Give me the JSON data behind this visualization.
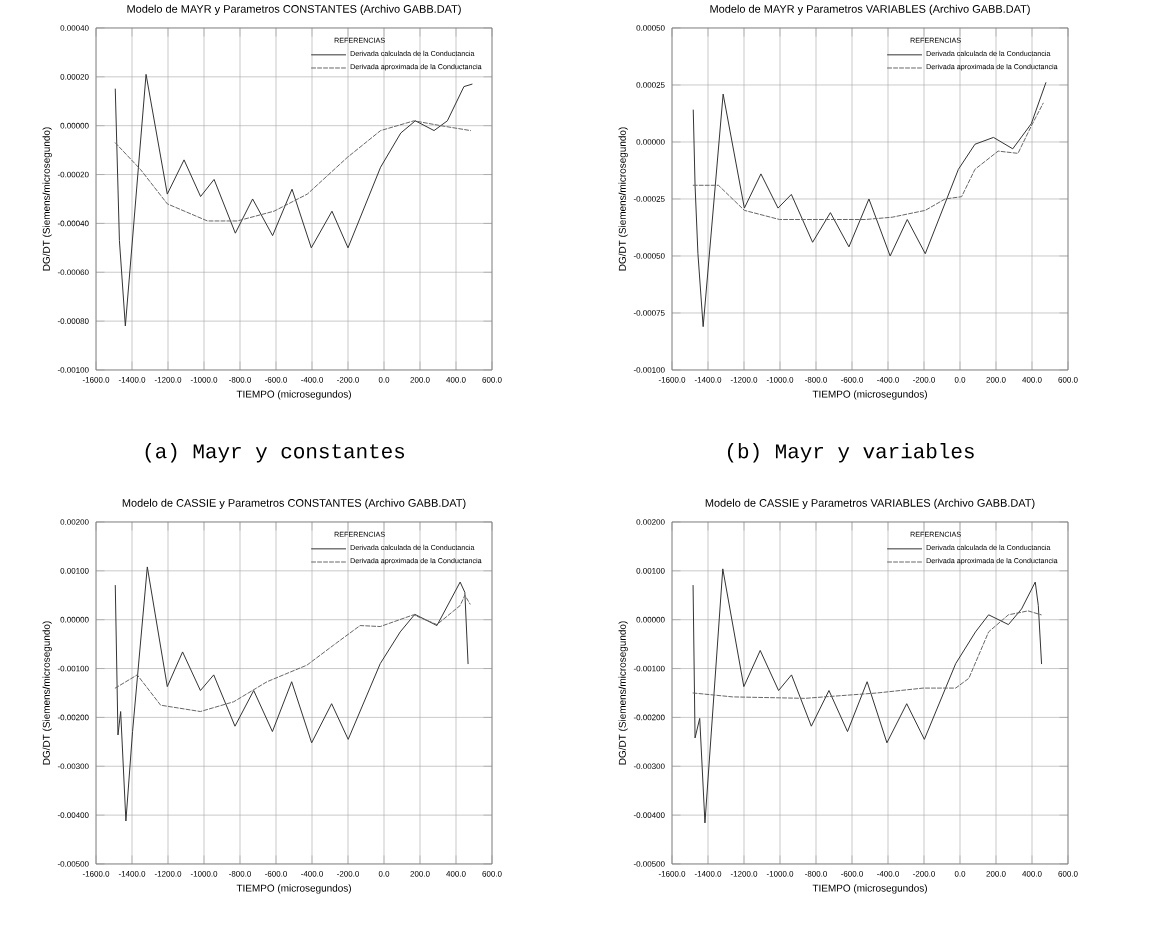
{
  "chart_data": [
    {
      "type": "line",
      "title": "Modelo de MAYR y Parametros CONSTANTES (Archivo GABB.DAT)",
      "xlabel": "TIEMPO (microsegundos)",
      "ylabel": "DG/DT (Siemens/microsegundo)",
      "legend_title": "REFERENCIAS",
      "annotations": [
        "(a) Mayr y constantes"
      ],
      "grid": true,
      "legend": "top right",
      "xlim": [
        -1600,
        600
      ],
      "ylim": [
        -0.001,
        0.0004
      ],
      "xticks": [
        {
          "value": -1600,
          "label": "-1600.0"
        },
        {
          "value": -1400,
          "label": "-1400.0"
        },
        {
          "value": -1200,
          "label": "-1200.0"
        },
        {
          "value": -1000,
          "label": "-1000.0"
        },
        {
          "value": -800,
          "label": "-800.0"
        },
        {
          "value": -600,
          "label": "-600.0"
        },
        {
          "value": -400,
          "label": "-400.0"
        },
        {
          "value": -200,
          "label": "-200.0"
        },
        {
          "value": 0,
          "label": "0.0"
        },
        {
          "value": 200,
          "label": "200.0"
        },
        {
          "value": 400,
          "label": "400.0"
        },
        {
          "value": 600,
          "label": "600.0"
        }
      ],
      "yticks": [
        {
          "value": -0.001,
          "label": "-0.00100"
        },
        {
          "value": -0.0008,
          "label": "-0.00080"
        },
        {
          "value": -0.0006,
          "label": "-0.00060"
        },
        {
          "value": -0.0004,
          "label": "-0.00040"
        },
        {
          "value": -0.0002,
          "label": "-0.00020"
        },
        {
          "value": 0,
          "label": "0.00000"
        },
        {
          "value": 0.0002,
          "label": "0.00020"
        },
        {
          "value": 0.0004,
          "label": "0.00040"
        }
      ],
      "series": [
        {
          "name": "Derivada calculada de la Conductancia",
          "color": "#333333",
          "line_style": "solid",
          "x": [
            -1493,
            -1470,
            -1437,
            -1322,
            -1204,
            -1111,
            -1019,
            -944,
            -826,
            -730,
            -619,
            -511,
            -404,
            -289,
            -200,
            -19,
            93,
            174,
            278,
            352,
            444,
            489
          ],
          "values": [
            0.00015,
            -0.00047,
            -0.00082,
            0.00021,
            -0.00028,
            -0.00014,
            -0.00029,
            -0.00022,
            -0.00044,
            -0.0003,
            -0.00045,
            -0.00026,
            -0.0005,
            -0.00035,
            -0.0005,
            -0.00017,
            -3e-05,
            2e-05,
            -2e-05,
            2e-05,
            0.00016,
            0.00017
          ]
        },
        {
          "name": "Derivada aproximada de la Conductancia",
          "color": "#666666",
          "line_style": "dashed",
          "x": [
            -1493,
            -1352,
            -1204,
            -981,
            -815,
            -611,
            -426,
            -204,
            -19,
            167,
            315,
            481
          ],
          "values": [
            -7e-05,
            -0.00018,
            -0.00032,
            -0.00039,
            -0.00039,
            -0.00035,
            -0.00028,
            -0.00013,
            -2e-05,
            2e-05,
            0,
            -2e-05
          ]
        }
      ]
    },
    {
      "type": "line",
      "title": "Modelo de MAYR y Parametros VARIABLES (Archivo GABB.DAT)",
      "xlabel": "TIEMPO (microsegundos)",
      "ylabel": "DG/DT (Siemens/microsegundo)",
      "legend_title": "REFERENCIAS",
      "annotations": [
        "(b) Mayr y variables"
      ],
      "grid": true,
      "legend": "top right",
      "xlim": [
        -1600,
        600
      ],
      "ylim": [
        -0.001,
        0.0005
      ],
      "xticks": [
        {
          "value": -1600,
          "label": "-1600.0"
        },
        {
          "value": -1400,
          "label": "-1400.0"
        },
        {
          "value": -1200,
          "label": "-1200.0"
        },
        {
          "value": -1000,
          "label": "-1000.0"
        },
        {
          "value": -800,
          "label": "-800.0"
        },
        {
          "value": -600,
          "label": "-600.0"
        },
        {
          "value": -400,
          "label": "-400.0"
        },
        {
          "value": -200,
          "label": "-200.0"
        },
        {
          "value": 0,
          "label": "0.0"
        },
        {
          "value": 200,
          "label": "200.0"
        },
        {
          "value": 400,
          "label": "400.0"
        },
        {
          "value": 600,
          "label": "600.0"
        }
      ],
      "yticks": [
        {
          "value": -0.001,
          "label": "-0.00100"
        },
        {
          "value": -0.00075,
          "label": "-0.00075"
        },
        {
          "value": -0.0005,
          "label": "-0.00050"
        },
        {
          "value": -0.00025,
          "label": "-0.00025"
        },
        {
          "value": 0,
          "label": "0.00000"
        },
        {
          "value": 0.00025,
          "label": "0.00025"
        },
        {
          "value": 0.0005,
          "label": "0.00050"
        }
      ],
      "series": [
        {
          "name": "Derivada calculada de la Conductancia",
          "color": "#333333",
          "line_style": "solid",
          "x": [
            -1482,
            -1472,
            -1456,
            -1427,
            -1316,
            -1198,
            -1106,
            -1011,
            -937,
            -819,
            -720,
            -617,
            -506,
            -388,
            -293,
            -193,
            -9,
            83,
            186,
            293,
            396,
            477
          ],
          "values": [
            0.00014,
            -0.00019,
            -0.00049,
            -0.00081,
            0.00021,
            -0.00029,
            -0.00014,
            -0.00029,
            -0.00023,
            -0.00044,
            -0.00031,
            -0.00046,
            -0.00025,
            -0.0005,
            -0.00034,
            -0.00049,
            -0.00012,
            -1e-05,
            2e-05,
            -3e-05,
            8e-05,
            0.00026
          ]
        },
        {
          "name": "Derivada aproximada de la Conductancia",
          "color": "#666666",
          "line_style": "dashed",
          "x": [
            -1482,
            -1342,
            -1198,
            -1003,
            -819,
            -525,
            -377,
            -193,
            -83,
            9,
            83,
            212,
            322,
            396,
            462
          ],
          "values": [
            -0.00019,
            -0.00019,
            -0.0003,
            -0.00034,
            -0.00034,
            -0.00034,
            -0.00033,
            -0.0003,
            -0.00025,
            -0.00024,
            -0.00012,
            -4e-05,
            -5e-05,
            7e-05,
            0.00017
          ]
        }
      ]
    },
    {
      "type": "line",
      "title": "Modelo de CASSIE y Parametros CONSTANTES (Archivo GABB.DAT)",
      "xlabel": "TIEMPO (microsegundos)",
      "ylabel": "DG/DT (Siemens/microsegundo)",
      "legend_title": "REFERENCIAS",
      "grid": true,
      "legend": "top right",
      "xlim": [
        -1600,
        600
      ],
      "ylim": [
        -0.005,
        0.002
      ],
      "xticks": [
        {
          "value": -1600,
          "label": "-1600.0"
        },
        {
          "value": -1400,
          "label": "-1400.0"
        },
        {
          "value": -1200,
          "label": "-1200.0"
        },
        {
          "value": -1000,
          "label": "-1000.0"
        },
        {
          "value": -800,
          "label": "-800.0"
        },
        {
          "value": -600,
          "label": "-600.0"
        },
        {
          "value": -400,
          "label": "-400.0"
        },
        {
          "value": -200,
          "label": "-200.0"
        },
        {
          "value": 0,
          "label": "0.0"
        },
        {
          "value": 200,
          "label": "200.0"
        },
        {
          "value": 400,
          "label": "400.0"
        },
        {
          "value": 600,
          "label": "600.0"
        }
      ],
      "yticks": [
        {
          "value": -0.005,
          "label": "-0.00500"
        },
        {
          "value": -0.004,
          "label": "-0.00400"
        },
        {
          "value": -0.003,
          "label": "-0.00300"
        },
        {
          "value": -0.002,
          "label": "-0.00200"
        },
        {
          "value": -0.001,
          "label": "-0.00100"
        },
        {
          "value": 0,
          "label": "0.00000"
        },
        {
          "value": 0.001,
          "label": "0.00100"
        },
        {
          "value": 0.002,
          "label": "0.00200"
        }
      ],
      "series": [
        {
          "name": "Derivada calculada de la Conductancia",
          "color": "#333333",
          "line_style": "solid",
          "x": [
            -1493,
            -1478,
            -1463,
            -1434,
            -1397,
            -1315,
            -1204,
            -1119,
            -1020,
            -946,
            -828,
            -724,
            -620,
            -513,
            -402,
            -291,
            -199,
            -21,
            90,
            171,
            294,
            423,
            449,
            467
          ],
          "values": [
            0.0007,
            -0.00236,
            -0.00188,
            -0.00412,
            -0.00229,
            0.00108,
            -0.00137,
            -0.00066,
            -0.00145,
            -0.00113,
            -0.00218,
            -0.00145,
            -0.00229,
            -0.00127,
            -0.00252,
            -0.00172,
            -0.00245,
            -0.0009,
            -0.00025,
            0.00011,
            -0.00012,
            0.00077,
            0.00056,
            -0.0009
          ]
        },
        {
          "name": "Derivada aproximada de la Conductancia",
          "color": "#666666",
          "line_style": "dashed",
          "x": [
            -1493,
            -1371,
            -1241,
            -1020,
            -835,
            -650,
            -428,
            -280,
            -133,
            -21,
            164,
            294,
            423,
            449,
            478
          ],
          "values": [
            -0.0014,
            -0.00113,
            -0.00175,
            -0.00188,
            -0.00168,
            -0.00127,
            -0.00093,
            -0.00052,
            -0.00012,
            -0.00014,
            0.0001,
            -0.0001,
            0.00029,
            0.0005,
            0.00032
          ]
        }
      ]
    },
    {
      "type": "line",
      "title": "Modelo de CASSIE y Parametros VARIABLES (Archivo GABB.DAT)",
      "xlabel": "TIEMPO (microsegundos)",
      "ylabel": "DG/DT (Siemens/microsegundo)",
      "legend_title": "REFERENCIAS",
      "grid": true,
      "legend": "top right",
      "xlim": [
        -1600,
        600
      ],
      "ylim": [
        -0.005,
        0.002
      ],
      "xticks": [
        {
          "value": -1600,
          "label": "-1600.0"
        },
        {
          "value": -1400,
          "label": "-1400.0"
        },
        {
          "value": -1200,
          "label": "-1200.0"
        },
        {
          "value": -1000,
          "label": "-1000.0"
        },
        {
          "value": -800,
          "label": "-800.0"
        },
        {
          "value": -600,
          "label": "-600.0"
        },
        {
          "value": -400,
          "label": "-400.0"
        },
        {
          "value": -200,
          "label": "-200.0"
        },
        {
          "value": 0,
          "label": "0.0"
        },
        {
          "value": 200,
          "label": "200.0"
        },
        {
          "value": 400,
          "label": "400.0"
        },
        {
          "value": 600,
          "label": "600.0"
        }
      ],
      "yticks": [
        {
          "value": -0.005,
          "label": "-0.00500"
        },
        {
          "value": -0.004,
          "label": "-0.00400"
        },
        {
          "value": -0.003,
          "label": "-0.00300"
        },
        {
          "value": -0.002,
          "label": "-0.00200"
        },
        {
          "value": -0.001,
          "label": "-0.00100"
        },
        {
          "value": 0,
          "label": "0.00000"
        },
        {
          "value": 0.001,
          "label": "0.00100"
        },
        {
          "value": 0.002,
          "label": "0.00200"
        }
      ],
      "series": [
        {
          "name": "Derivada calculada de la Conductancia",
          "color": "#333333",
          "line_style": "solid",
          "x": [
            -1483,
            -1472,
            -1446,
            -1417,
            -1318,
            -1201,
            -1110,
            -1008,
            -936,
            -826,
            -728,
            -625,
            -516,
            -406,
            -296,
            -198,
            -24,
            86,
            159,
            269,
            342,
            418,
            435,
            453
          ],
          "values": [
            0.0007,
            -0.00242,
            -0.00202,
            -0.00416,
            0.00104,
            -0.00137,
            -0.00063,
            -0.00145,
            -0.00113,
            -0.00218,
            -0.00145,
            -0.00229,
            -0.00127,
            -0.00252,
            -0.00172,
            -0.00245,
            -0.0009,
            -0.00025,
            0.0001,
            -0.0001,
            0.00022,
            0.00077,
            0.00029,
            -0.0009
          ]
        },
        {
          "name": "Derivada aproximada de la Conductancia",
          "color": "#666666",
          "line_style": "dashed",
          "x": [
            -1483,
            -1264,
            -862,
            -461,
            -205,
            -24,
            49,
            159,
            269,
            378,
            451
          ],
          "values": [
            -0.0015,
            -0.00158,
            -0.00161,
            -0.0015,
            -0.0014,
            -0.0014,
            -0.0012,
            -0.00025,
            0.0001,
            0.00018,
            0.0001
          ]
        }
      ]
    }
  ]
}
